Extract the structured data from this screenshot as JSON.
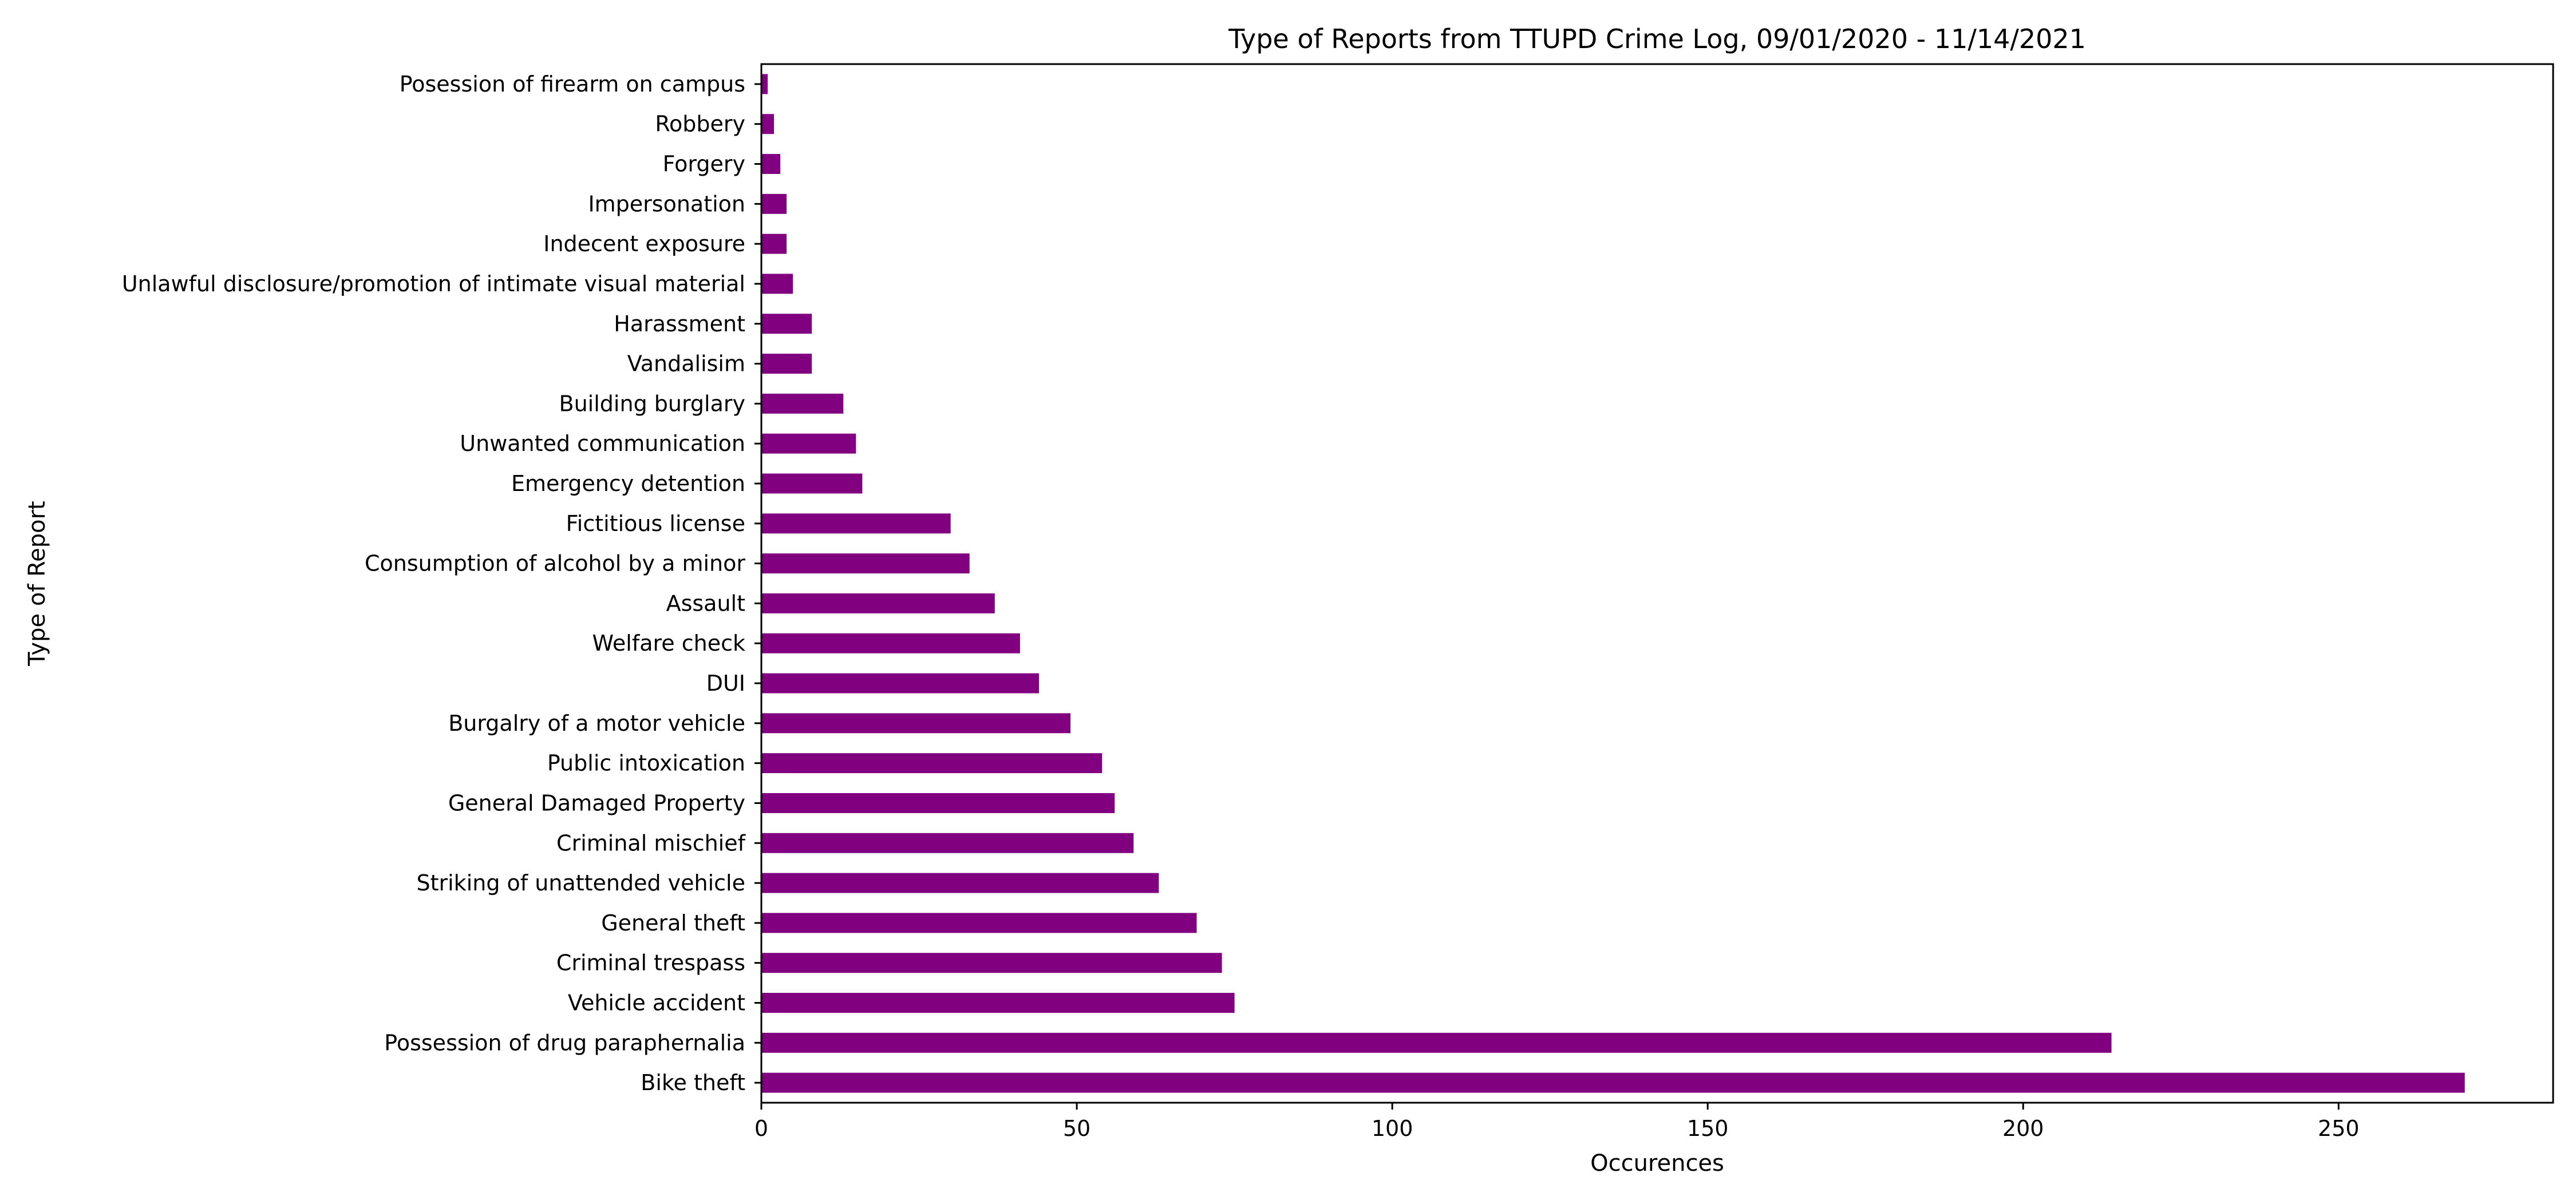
{
  "chart_data": {
    "type": "bar",
    "orientation": "horizontal",
    "title": "Type of Reports from TTUPD Crime Log, 09/01/2020 - 11/14/2021",
    "xlabel": "Occurences",
    "ylabel": "Type of Report",
    "xlim": [
      0,
      284
    ],
    "xticks": [
      0,
      50,
      100,
      150,
      200,
      250
    ],
    "grid": false,
    "legend": "none",
    "bar_color": "#800080",
    "categories": [
      "Bike theft",
      "Possession of drug paraphernalia",
      "Vehicle accident",
      "Criminal trespass",
      "General theft",
      "Striking of unattended vehicle",
      "Criminal mischief",
      "General Damaged Property",
      "Public intoxication",
      "Burgalry of a motor vehicle",
      "DUI",
      "Welfare check",
      "Assault",
      "Consumption of alcohol by a minor",
      "Fictitious license",
      "Emergency detention",
      "Unwanted communication",
      "Building burglary",
      "Vandalisim",
      "Harassment",
      "Unlawful disclosure/promotion of intimate visual material",
      "Indecent exposure",
      "Impersonation",
      "Forgery",
      "Robbery",
      "Posession of firearm on campus"
    ],
    "values": [
      270,
      214,
      75,
      73,
      69,
      63,
      59,
      56,
      54,
      49,
      44,
      41,
      37,
      33,
      30,
      16,
      15,
      13,
      8,
      8,
      5,
      4,
      4,
      3,
      2,
      1
    ]
  }
}
